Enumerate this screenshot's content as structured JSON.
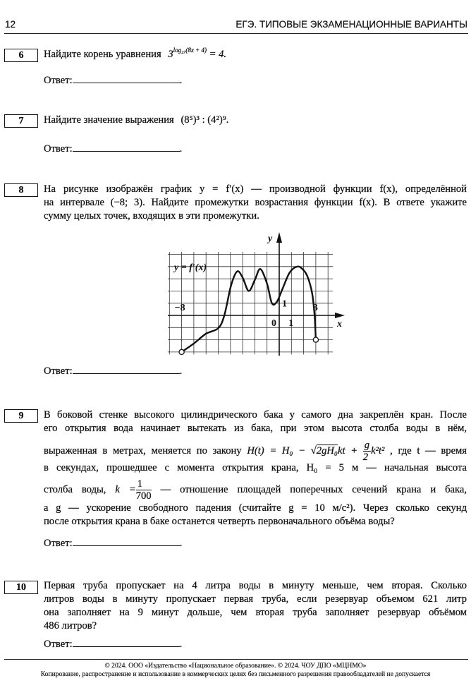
{
  "header": {
    "page_number": "12",
    "title": "ЕГЭ. ТИПОВЫЕ ЭКЗАМЕНАЦИОННЫЕ ВАРИАНТЫ"
  },
  "answer_label": "Ответ:",
  "problems": [
    {
      "number": "6",
      "text": "Найдите корень уравнения",
      "formula": {
        "base": "3",
        "exponent": "log₂₇(8x + 4)",
        "rhs": "= 4",
        "end": "."
      }
    },
    {
      "number": "7",
      "text": "Найдите значение выражения",
      "formula": {
        "part1": "(8⁵)³",
        "op": ":",
        "part2": "(4²)⁹",
        "end": "."
      }
    },
    {
      "number": "8",
      "lines": [
        "На рисунке изображён график y = f′(x) — производной функции f(x), определённой",
        "на интервале (−8; 3). Найдите промежутки возрастания функции f(x). В ответе укажите",
        "сумму целых точек, входящих в эти промежутки."
      ],
      "figure": {
        "curve_label": "y = f′(x)",
        "x_axis_label": "x",
        "y_axis_label": "y",
        "tick_labels": {
          "x_left": "−8",
          "x_right": "3",
          "origin": "0",
          "x_one": "1",
          "y_one": "1"
        },
        "x_range": [
          -8,
          3
        ],
        "curve_points": [
          [
            -8,
            -3
          ],
          [
            -7,
            -2.3
          ],
          [
            -6,
            -1.5
          ],
          [
            -5,
            -1.05
          ],
          [
            -4.5,
            0
          ],
          [
            -3.95,
            2.45
          ],
          [
            -3.45,
            3.6
          ],
          [
            -3,
            3.1
          ],
          [
            -2.5,
            2
          ],
          [
            -2,
            2.9
          ],
          [
            -1.55,
            3.8
          ],
          [
            -1,
            2.6
          ],
          [
            -0.6,
            1
          ],
          [
            -0.2,
            1.1
          ],
          [
            0.2,
            2
          ],
          [
            0.85,
            3.5
          ],
          [
            1.5,
            4
          ],
          [
            2,
            3.7
          ],
          [
            2.35,
            3.1
          ],
          [
            2.7,
            1.8
          ],
          [
            2.9,
            0
          ],
          [
            3,
            -2
          ]
        ],
        "open_endpoints": [
          [
            -8,
            -3
          ],
          [
            3,
            -2
          ]
        ]
      }
    },
    {
      "number": "9",
      "lines": [
        "В боковой стенке высокого цилиндрического бака у самого дна закреплён кран. После",
        "его открытия вода начинает вытекать из бака, при этом высота столба воды в нём,",
        "выраженная в метрах, меняется по закону",
        ", где t — время",
        "в секундах, прошедшее с момента открытия крана, H₀ = 5 м — начальная высота",
        "столба воды,",
        "— отношение площадей поперечных сечений крана и бака,",
        "а g — ускорение свободного падения (считайте g = 10 м/с²). Через сколько секунд",
        "после открытия крана в баке останется четверть первоначального объёма воды?"
      ],
      "formula_H": {
        "lhs": "H(t) = H₀ − ",
        "sqrt": "2gH₀",
        "mid": "kt + ",
        "frac_num": "g",
        "frac_den": "2",
        "tail": "k²t²"
      },
      "formula_k": {
        "lhs": "k =",
        "num": "1",
        "den": "700"
      }
    },
    {
      "number": "10",
      "lines": [
        "Первая труба пропускает на 4 литра воды в минуту меньше, чем вторая. Сколько",
        "литров воды в минуту пропускает первая труба, если резервуар объемом 621 литр",
        "она заполняет на 9 минут дольше, чем вторая труба заполняет резервуар объёмом",
        "486 литров?"
      ]
    }
  ],
  "footer": {
    "line1": "© 2024. ООО «Издательство «Национальное образование». © 2024. ЧОУ ДПО «МЦНМО»",
    "line2": "Копирование, распространение и использование в коммерческих целях без письменного разрешения правообладателей не допускается"
  }
}
